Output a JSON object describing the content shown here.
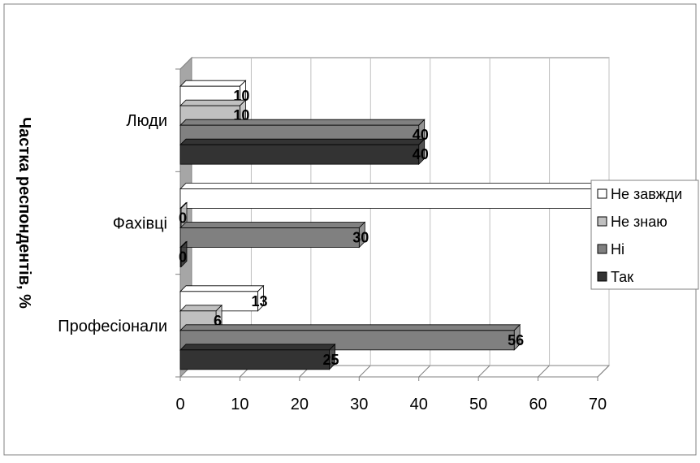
{
  "chart_data": {
    "type": "bar",
    "orientation": "horizontal",
    "three_d": true,
    "categories": [
      "Люди",
      "Фахівці",
      "Професіонали"
    ],
    "series": [
      {
        "name": "Не завжди",
        "color": "#ffffff",
        "values": [
          10,
          70,
          13
        ]
      },
      {
        "name": "Не знаю",
        "color": "#c0c0c0",
        "values": [
          10,
          0,
          6
        ]
      },
      {
        "name": "Ні",
        "color": "#808080",
        "values": [
          40,
          30,
          56
        ]
      },
      {
        "name": "Так",
        "color": "#333333",
        "values": [
          40,
          0,
          25
        ]
      }
    ],
    "data_labels": [
      [
        "10",
        "",
        "13"
      ],
      [
        "10",
        "0",
        "6"
      ],
      [
        "40",
        "30",
        "56"
      ],
      [
        "40",
        "0",
        "25"
      ]
    ],
    "x_ticks": [
      "0",
      "10",
      "20",
      "30",
      "40",
      "50",
      "60",
      "70"
    ],
    "xlim": [
      0,
      70
    ],
    "ylabel": "Частка респондентів, %",
    "grid": true,
    "legend_position": "right",
    "colors": {
      "wall": "#a6a6a6",
      "grid": "#c0c0c0",
      "frame": "#808080",
      "bar_edge": "#000000"
    }
  }
}
